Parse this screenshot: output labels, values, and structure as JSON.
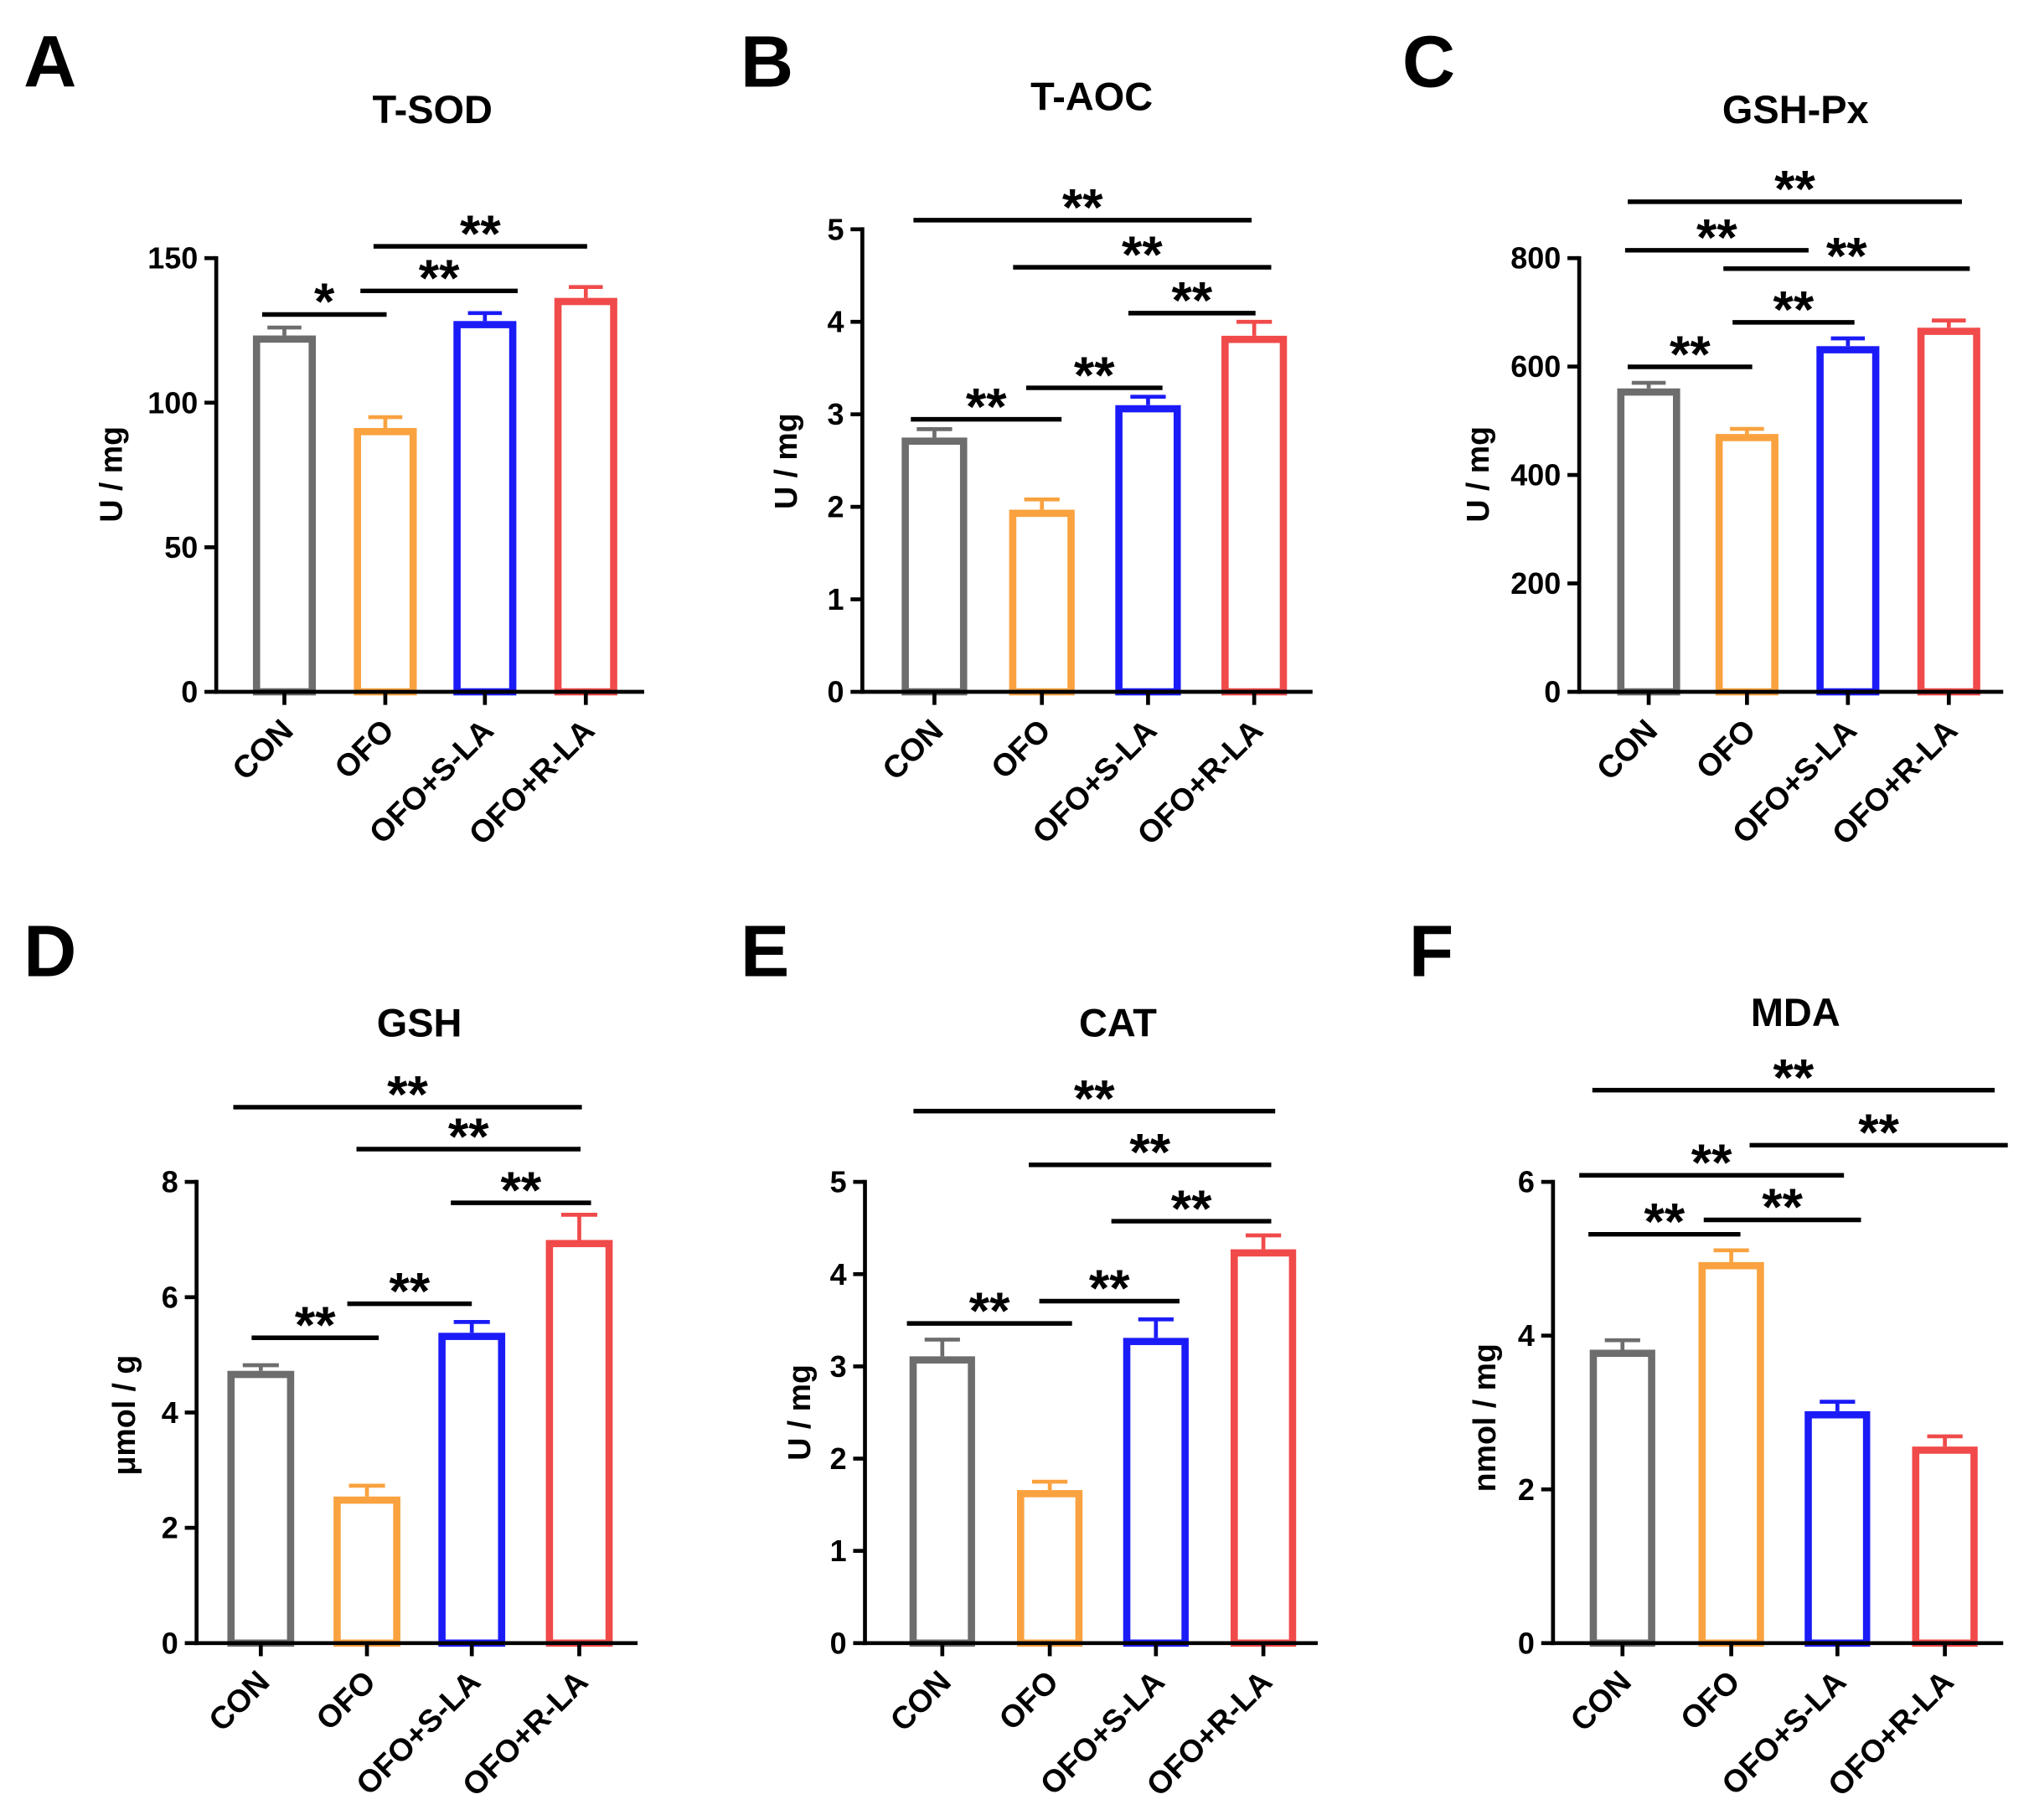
{
  "colors": {
    "CON": "#6d6d6d",
    "OFO": "#f9a23f",
    "OFO+S-LA": "#1b1bf7",
    "OFO+R-LA": "#f04a4a",
    "axis": "#000000"
  },
  "chart_data": [
    {
      "panel": "A",
      "type": "bar",
      "title": "T-SOD",
      "ylabel": "U / mg",
      "ylim": [
        0,
        150
      ],
      "yticks": [
        0,
        50,
        100,
        150
      ],
      "categories": [
        "CON",
        "OFO",
        "OFO+S-LA",
        "OFO+R-LA"
      ],
      "values": [
        122,
        90,
        127,
        135
      ],
      "errors": [
        4,
        5,
        4,
        5
      ],
      "significance": [
        {
          "groups": [
            0,
            1
          ],
          "label": "*"
        },
        {
          "groups": [
            1,
            2
          ],
          "label": "**"
        },
        {
          "groups": [
            1,
            3
          ],
          "label": "**"
        }
      ]
    },
    {
      "panel": "B",
      "type": "bar",
      "title": "T-AOC",
      "ylabel": "U / mg",
      "ylim": [
        0,
        5
      ],
      "yticks": [
        0,
        1,
        2,
        3,
        4,
        5
      ],
      "categories": [
        "CON",
        "OFO",
        "OFO+S-LA",
        "OFO+R-LA"
      ],
      "values": [
        2.71,
        1.93,
        3.06,
        3.81
      ],
      "errors": [
        0.13,
        0.15,
        0.13,
        0.19
      ],
      "significance": [
        {
          "groups": [
            0,
            1
          ],
          "label": "**"
        },
        {
          "groups": [
            1,
            2
          ],
          "label": "**"
        },
        {
          "groups": [
            2,
            3
          ],
          "label": "**"
        },
        {
          "groups": [
            1,
            3
          ],
          "label": "**"
        },
        {
          "groups": [
            0,
            3
          ],
          "label": "**"
        }
      ]
    },
    {
      "panel": "C",
      "type": "bar",
      "title": "GSH-Px",
      "ylabel": "U / mg",
      "ylim": [
        0,
        800
      ],
      "yticks": [
        0,
        200,
        400,
        600,
        800
      ],
      "categories": [
        "CON",
        "OFO",
        "OFO+S-LA",
        "OFO+R-LA"
      ],
      "values": [
        553,
        469,
        631,
        665
      ],
      "errors": [
        17,
        16,
        21,
        20
      ],
      "significance": [
        {
          "groups": [
            0,
            1
          ],
          "label": "**"
        },
        {
          "groups": [
            1,
            2
          ],
          "label": "**"
        },
        {
          "groups": [
            0,
            2
          ],
          "label": "**"
        },
        {
          "groups": [
            1,
            3
          ],
          "label": "**"
        },
        {
          "groups": [
            0,
            3
          ],
          "label": "**"
        }
      ]
    },
    {
      "panel": "D",
      "type": "bar",
      "title": "GSH",
      "ylabel": "μmol / g",
      "ylim": [
        0,
        8
      ],
      "yticks": [
        0,
        2,
        4,
        6,
        8
      ],
      "categories": [
        "CON",
        "OFO",
        "OFO+S-LA",
        "OFO+R-LA"
      ],
      "values": [
        4.66,
        2.48,
        5.32,
        6.93
      ],
      "errors": [
        0.16,
        0.25,
        0.25,
        0.5
      ],
      "significance": [
        {
          "groups": [
            0,
            1
          ],
          "label": "**"
        },
        {
          "groups": [
            1,
            2
          ],
          "label": "**"
        },
        {
          "groups": [
            2,
            3
          ],
          "label": "**"
        },
        {
          "groups": [
            1,
            3
          ],
          "label": "**"
        },
        {
          "groups": [
            0,
            3
          ],
          "label": "**"
        }
      ]
    },
    {
      "panel": "E",
      "type": "bar",
      "title": "CAT",
      "ylabel": "U / mg",
      "ylim": [
        0,
        5
      ],
      "yticks": [
        0,
        1,
        2,
        3,
        4,
        5
      ],
      "categories": [
        "CON",
        "OFO",
        "OFO+S-LA",
        "OFO+R-LA"
      ],
      "values": [
        3.07,
        1.62,
        3.27,
        4.23
      ],
      "errors": [
        0.22,
        0.13,
        0.24,
        0.19
      ],
      "significance": [
        {
          "groups": [
            0,
            1
          ],
          "label": "**"
        },
        {
          "groups": [
            1,
            2
          ],
          "label": "**"
        },
        {
          "groups": [
            2,
            3
          ],
          "label": "**"
        },
        {
          "groups": [
            1,
            3
          ],
          "label": "**"
        },
        {
          "groups": [
            0,
            3
          ],
          "label": "**"
        }
      ]
    },
    {
      "panel": "F",
      "type": "bar",
      "title": "MDA",
      "ylabel": "nmol / mg",
      "ylim": [
        0,
        6
      ],
      "yticks": [
        0,
        2,
        4,
        6
      ],
      "categories": [
        "CON",
        "OFO",
        "OFO+S-LA",
        "OFO+R-LA"
      ],
      "values": [
        3.77,
        4.91,
        2.97,
        2.51
      ],
      "errors": [
        0.17,
        0.2,
        0.17,
        0.18
      ],
      "significance": [
        {
          "groups": [
            0,
            1
          ],
          "label": "**"
        },
        {
          "groups": [
            1,
            2
          ],
          "label": "**"
        },
        {
          "groups": [
            0,
            2
          ],
          "label": "**"
        },
        {
          "groups": [
            1,
            3
          ],
          "label": "**"
        },
        {
          "groups": [
            0,
            3
          ],
          "label": "**"
        }
      ]
    }
  ]
}
